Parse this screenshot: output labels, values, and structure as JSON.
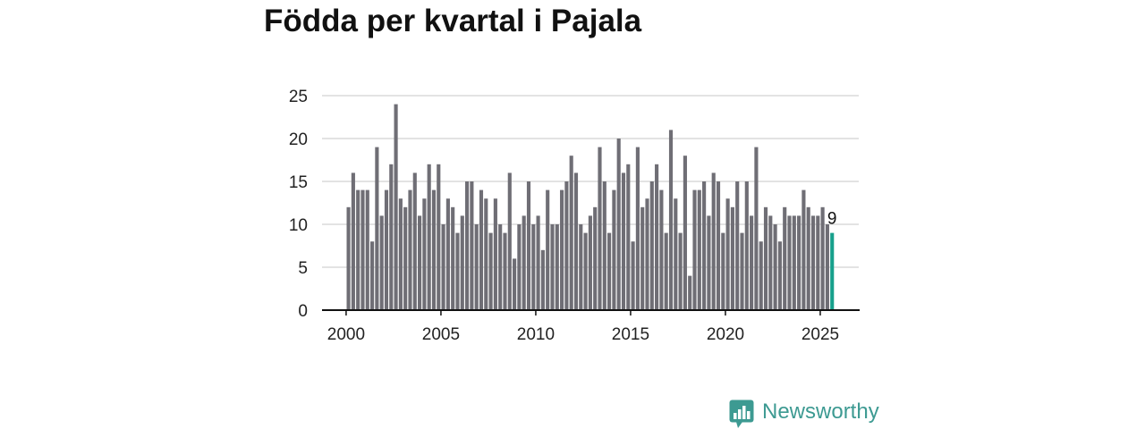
{
  "chart_data": {
    "type": "bar",
    "title": "Födda per kvartal i Pajala",
    "x_start": 2000,
    "x_step": 0.25,
    "xlim": [
      1998.73,
      2027.03
    ],
    "ylim": [
      0,
      25
    ],
    "yticks": [
      0,
      5,
      10,
      15,
      20,
      25
    ],
    "xticks": [
      2000,
      2005,
      2010,
      2015,
      2020,
      2025
    ],
    "values": [
      12,
      16,
      14,
      14,
      14,
      8,
      19,
      11,
      14,
      17,
      24,
      13,
      12,
      14,
      16,
      11,
      13,
      17,
      14,
      17,
      10,
      13,
      12,
      9,
      11,
      15,
      15,
      10,
      14,
      13,
      9,
      13,
      10,
      9,
      16,
      6,
      10,
      11,
      15,
      10,
      11,
      7,
      14,
      10,
      10,
      14,
      15,
      18,
      16,
      10,
      9,
      11,
      12,
      19,
      15,
      9,
      14,
      20,
      16,
      17,
      8,
      19,
      12,
      13,
      15,
      17,
      14,
      9,
      21,
      13,
      9,
      18,
      4,
      14,
      14,
      15,
      11,
      16,
      15,
      9,
      13,
      12,
      15,
      9,
      15,
      11,
      19,
      8,
      12,
      11,
      10,
      8,
      12,
      11,
      11,
      11,
      14,
      12,
      11,
      11,
      12,
      10,
      9
    ],
    "highlight_index": 102,
    "data_labels": [
      {
        "index": 102,
        "text": "9"
      }
    ],
    "grid": true,
    "colors": {
      "bar": "#6f6e75",
      "highlight": "#17a08c",
      "gridline": "#dadada",
      "axis": "#111111",
      "tick_label": "#222222"
    }
  },
  "logo": {
    "text": "Newsworthy",
    "icon": "newsworthy-logo-icon",
    "color": "#3d9a92"
  },
  "page": {
    "background": "#ffffff",
    "title_color": "#111111"
  }
}
